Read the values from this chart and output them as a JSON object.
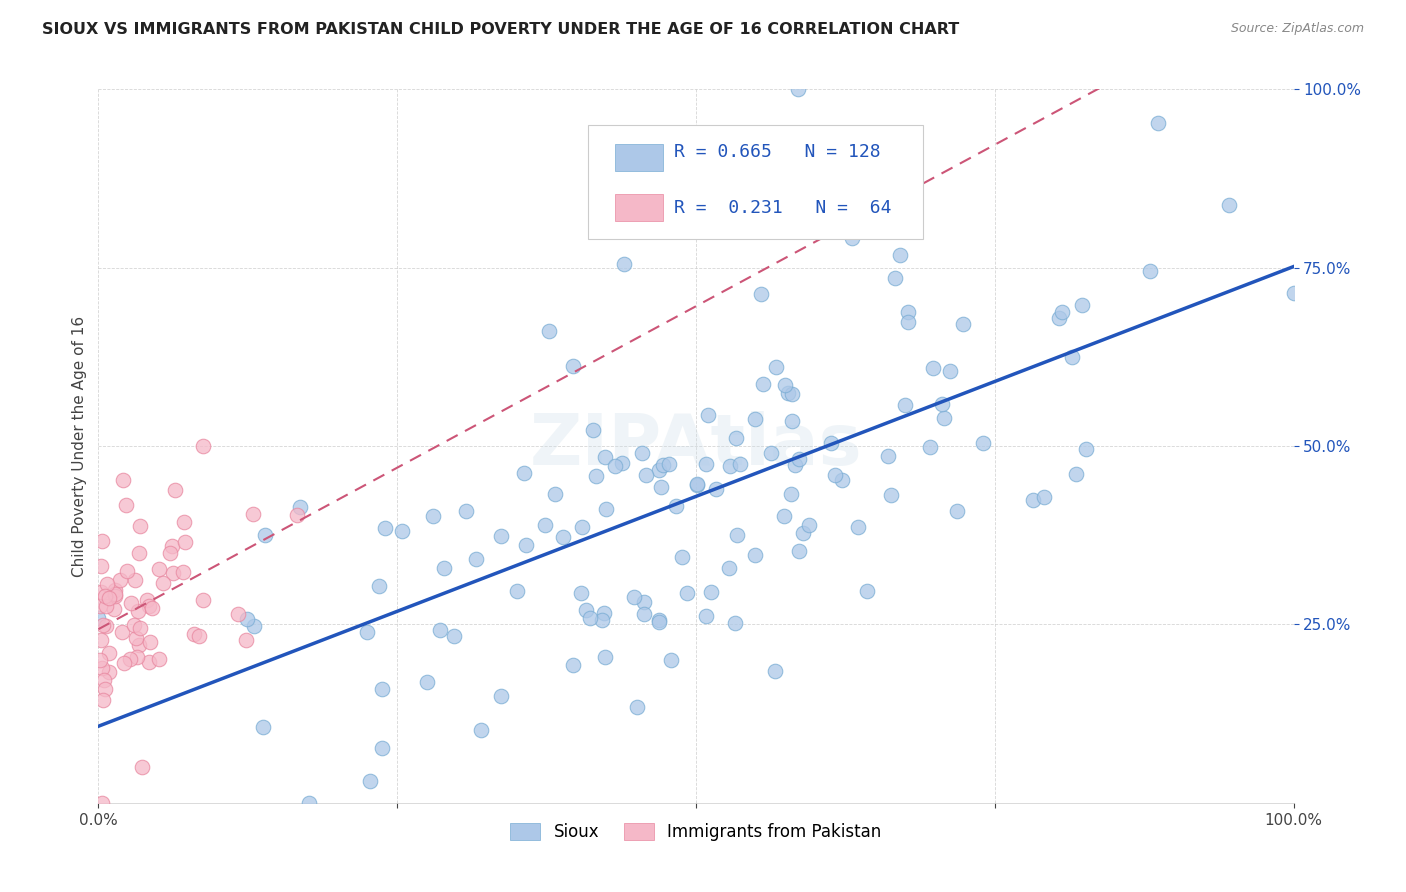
{
  "title": "SIOUX VS IMMIGRANTS FROM PAKISTAN CHILD POVERTY UNDER THE AGE OF 16 CORRELATION CHART",
  "source": "Source: ZipAtlas.com",
  "ylabel": "Child Poverty Under the Age of 16",
  "xlim": [
    0.0,
    1.0
  ],
  "ylim": [
    0.0,
    1.0
  ],
  "xticks": [
    0.0,
    0.25,
    0.5,
    0.75,
    1.0
  ],
  "xticklabels": [
    "0.0%",
    "",
    "",
    "",
    "100.0%"
  ],
  "yticks": [
    0.25,
    0.5,
    0.75,
    1.0
  ],
  "yticklabels": [
    "25.0%",
    "50.0%",
    "75.0%",
    "100.0%"
  ],
  "sioux_color": "#adc8e8",
  "sioux_edge": "#7aadd4",
  "pakistan_color": "#f5b8c8",
  "pakistan_edge": "#e888a0",
  "trend_sioux_color": "#2255bb",
  "trend_pakistan_color": "#cc5577",
  "R_sioux": 0.665,
  "N_sioux": 128,
  "R_pakistan": 0.231,
  "N_pakistan": 64,
  "watermark": "ZIPAtlas",
  "background_color": "#ffffff",
  "legend_sioux_color": "#adc8e8",
  "legend_sioux_edge": "#7aadd4",
  "legend_pakistan_color": "#f5b8c8",
  "legend_pakistan_edge": "#e888a0",
  "legend_text_color": "#2255bb",
  "title_color": "#222222",
  "source_color": "#888888",
  "ylabel_color": "#444444",
  "ytick_color": "#2255bb",
  "xtick_color": "#444444"
}
